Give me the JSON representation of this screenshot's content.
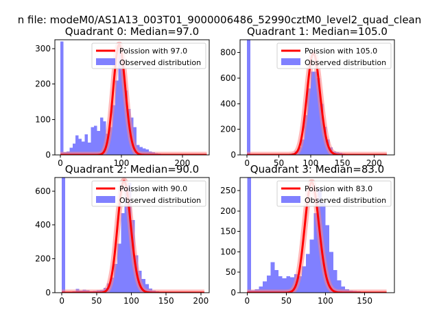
{
  "figure": {
    "suptitle": "n file: modeM0/AS1A13_003T01_9000006486_52990cztM0_level2_quad_clean"
  },
  "colors": {
    "observed_bars": "#8080ff",
    "poisson_line": "#ff0000",
    "poisson_band": "#ff8080",
    "axis": "#000000",
    "background": "#ffffff"
  },
  "chart_data": [
    {
      "type": "bar",
      "title": "Quadrant 0: Median=97.0",
      "xlabel": "",
      "ylabel": "",
      "xlim": [
        -9,
        244
      ],
      "ylim": [
        0,
        325
      ],
      "xticks": [
        0,
        100,
        200
      ],
      "yticks": [
        0,
        100,
        200,
        300
      ],
      "legend": {
        "placement": "upper right",
        "line_label": "Poission with 97.0",
        "bars_label": "Observed distribution"
      },
      "bin_width": 5,
      "bins": [
        [
          0,
          320
        ],
        [
          5,
          8
        ],
        [
          10,
          10
        ],
        [
          15,
          20
        ],
        [
          20,
          32
        ],
        [
          25,
          55
        ],
        [
          30,
          45
        ],
        [
          35,
          38
        ],
        [
          40,
          58
        ],
        [
          45,
          35
        ],
        [
          50,
          78
        ],
        [
          55,
          82
        ],
        [
          60,
          68
        ],
        [
          65,
          105
        ],
        [
          70,
          95
        ],
        [
          75,
          60
        ],
        [
          80,
          78
        ],
        [
          85,
          140
        ],
        [
          90,
          210
        ],
        [
          95,
          300
        ],
        [
          100,
          255
        ],
        [
          105,
          182
        ],
        [
          110,
          130
        ],
        [
          115,
          105
        ],
        [
          120,
          78
        ],
        [
          125,
          28
        ],
        [
          130,
          22
        ],
        [
          135,
          18
        ],
        [
          140,
          15
        ],
        [
          145,
          10
        ],
        [
          150,
          8
        ],
        [
          155,
          5
        ],
        [
          160,
          4
        ],
        [
          165,
          3
        ],
        [
          170,
          2
        ],
        [
          175,
          2
        ],
        [
          180,
          1
        ],
        [
          185,
          1
        ],
        [
          190,
          1
        ],
        [
          195,
          1
        ],
        [
          200,
          1
        ],
        [
          205,
          1
        ],
        [
          210,
          1
        ],
        [
          215,
          1
        ],
        [
          220,
          1
        ],
        [
          225,
          1
        ],
        [
          230,
          1
        ]
      ],
      "series": [
        {
          "name": "Poission with 97.0",
          "kind": "poisson",
          "mean": 97.0,
          "scale": 311,
          "x_range": [
            0,
            240
          ]
        },
        {
          "name": "Observed distribution",
          "kind": "histogram"
        }
      ]
    },
    {
      "type": "bar",
      "title": "Quadrant 1: Median=105.0",
      "xlabel": "",
      "ylabel": "",
      "xlim": [
        -11,
        232
      ],
      "ylim": [
        0,
        900
      ],
      "xticks": [
        0,
        50,
        100,
        150,
        200
      ],
      "yticks": [
        0,
        200,
        400,
        600,
        800
      ],
      "legend": {
        "placement": "upper right",
        "line_label": "Poission with 105.0",
        "bars_label": "Observed distribution"
      },
      "bin_width": 5,
      "bins": [
        [
          0,
          900
        ],
        [
          5,
          4
        ],
        [
          10,
          3
        ],
        [
          15,
          3
        ],
        [
          20,
          2
        ],
        [
          25,
          3
        ],
        [
          30,
          4
        ],
        [
          35,
          3
        ],
        [
          40,
          3
        ],
        [
          45,
          4
        ],
        [
          50,
          4
        ],
        [
          55,
          5
        ],
        [
          60,
          6
        ],
        [
          65,
          8
        ],
        [
          70,
          14
        ],
        [
          75,
          30
        ],
        [
          80,
          60
        ],
        [
          85,
          120
        ],
        [
          90,
          310
        ],
        [
          95,
          520
        ],
        [
          100,
          650
        ],
        [
          105,
          650
        ],
        [
          110,
          600
        ],
        [
          115,
          400
        ],
        [
          120,
          220
        ],
        [
          125,
          120
        ],
        [
          130,
          60
        ],
        [
          135,
          28
        ],
        [
          140,
          22
        ],
        [
          145,
          15
        ],
        [
          150,
          11
        ],
        [
          155,
          7
        ],
        [
          160,
          5
        ],
        [
          165,
          3
        ],
        [
          170,
          2
        ],
        [
          175,
          2
        ],
        [
          180,
          1
        ],
        [
          185,
          1
        ],
        [
          190,
          1
        ],
        [
          195,
          1
        ],
        [
          200,
          1
        ],
        [
          205,
          1
        ],
        [
          210,
          1
        ],
        [
          215,
          1
        ]
      ],
      "series": [
        {
          "name": "Poission with 105.0",
          "kind": "poisson",
          "mean": 105.0,
          "scale": 795,
          "x_range": [
            0,
            220
          ]
        }
      ]
    },
    {
      "type": "bar",
      "title": "Quadrant 2: Median=90.0",
      "xlabel": "",
      "ylabel": "",
      "xlim": [
        -10,
        212
      ],
      "ylim": [
        0,
        680
      ],
      "xticks": [
        0,
        50,
        100,
        150,
        200
      ],
      "yticks": [
        0,
        200,
        400,
        600
      ],
      "legend": {
        "placement": "upper right",
        "line_label": "Poission with 90.0",
        "bars_label": "Observed distribution"
      },
      "bin_width": 5,
      "bins": [
        [
          0,
          680
        ],
        [
          5,
          3
        ],
        [
          10,
          4
        ],
        [
          15,
          8
        ],
        [
          20,
          22
        ],
        [
          25,
          12
        ],
        [
          30,
          18
        ],
        [
          35,
          14
        ],
        [
          40,
          8
        ],
        [
          45,
          10
        ],
        [
          50,
          14
        ],
        [
          55,
          16
        ],
        [
          60,
          28
        ],
        [
          65,
          55
        ],
        [
          70,
          90
        ],
        [
          75,
          170
        ],
        [
          80,
          290
        ],
        [
          85,
          470
        ],
        [
          90,
          600
        ],
        [
          95,
          650
        ],
        [
          100,
          430
        ],
        [
          105,
          220
        ],
        [
          110,
          130
        ],
        [
          115,
          80
        ],
        [
          120,
          50
        ],
        [
          125,
          25
        ],
        [
          130,
          12
        ],
        [
          135,
          8
        ],
        [
          140,
          5
        ],
        [
          145,
          3
        ],
        [
          150,
          2
        ],
        [
          155,
          2
        ],
        [
          160,
          1
        ],
        [
          165,
          1
        ],
        [
          170,
          1
        ],
        [
          175,
          1
        ],
        [
          180,
          1
        ],
        [
          185,
          1
        ],
        [
          190,
          1
        ],
        [
          195,
          1
        ],
        [
          200,
          1
        ]
      ],
      "series": [
        {
          "name": "Poission with 90.0",
          "kind": "poisson",
          "mean": 90.0,
          "scale": 660,
          "x_range": [
            0,
            205
          ]
        }
      ]
    },
    {
      "type": "bar",
      "title": "Quadrant 3: Median=83.0",
      "xlabel": "",
      "ylabel": "",
      "xlim": [
        -9,
        188
      ],
      "ylim": [
        0,
        282
      ],
      "xticks": [
        0,
        50,
        100,
        150
      ],
      "yticks": [
        0,
        50,
        100,
        150,
        200,
        250
      ],
      "legend": {
        "placement": "upper right",
        "line_label": "Poission with 83.0",
        "bars_label": "Observed distribution"
      },
      "bin_width": 5,
      "bins": [
        [
          0,
          282
        ],
        [
          5,
          6
        ],
        [
          10,
          8
        ],
        [
          15,
          15
        ],
        [
          20,
          28
        ],
        [
          25,
          42
        ],
        [
          30,
          75
        ],
        [
          35,
          55
        ],
        [
          40,
          40
        ],
        [
          45,
          35
        ],
        [
          50,
          40
        ],
        [
          55,
          38
        ],
        [
          60,
          45
        ],
        [
          65,
          40
        ],
        [
          70,
          65
        ],
        [
          75,
          95
        ],
        [
          80,
          130
        ],
        [
          85,
          195
        ],
        [
          90,
          255
        ],
        [
          95,
          220
        ],
        [
          100,
          165
        ],
        [
          105,
          100
        ],
        [
          110,
          55
        ],
        [
          115,
          30
        ],
        [
          120,
          15
        ],
        [
          125,
          8
        ],
        [
          130,
          5
        ],
        [
          135,
          4
        ],
        [
          140,
          3
        ],
        [
          145,
          2
        ],
        [
          150,
          2
        ],
        [
          155,
          1
        ],
        [
          160,
          1
        ],
        [
          165,
          1
        ],
        [
          170,
          1
        ]
      ],
      "series": [
        {
          "name": "Poission with 83.0",
          "kind": "poisson",
          "mean": 83.0,
          "scale": 270,
          "x_range": [
            0,
            178
          ]
        }
      ]
    }
  ]
}
